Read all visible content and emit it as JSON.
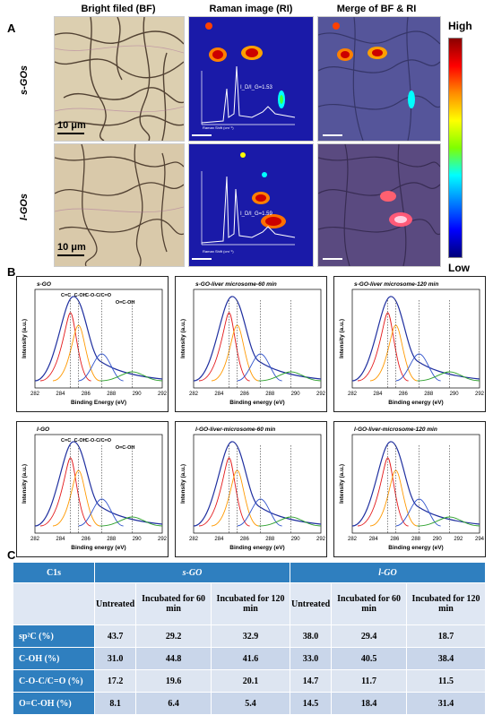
{
  "panel_a": {
    "letter": "A",
    "columns": [
      "Bright filed (BF)",
      "Raman image (RI)",
      "Merge of BF & RI"
    ],
    "rows": [
      "s-GOs",
      "l-GOs"
    ],
    "scale_label": "10 μm",
    "colorbar": {
      "high": "High",
      "low": "Low"
    },
    "insets": [
      {
        "ratio_label": "I_D/I_G=1.53",
        "ylabel": "Intensity (a.u.)",
        "xlabel": "Raman Shift (cm⁻¹)",
        "ticks": [
          "500",
          "1000",
          "1500",
          "2000",
          "2500",
          "3000",
          "3500",
          "4000"
        ]
      },
      {
        "ratio_label": "I_D/I_G=1.59",
        "ylabel": "Intensity (a.u.)",
        "xlabel": "Raman Shift (cm⁻¹)",
        "ticks": [
          "500",
          "1000",
          "1500",
          "2000",
          "2500",
          "3000",
          "3500",
          "4000"
        ]
      }
    ]
  },
  "panel_b": {
    "letter": "B",
    "ylabel": "Intensity (a.u.)",
    "charts": [
      {
        "title": "s-GO",
        "xlabel": "Binding Energy (eV)",
        "peak_labels": [
          "C=C",
          "C-OH",
          "C-O-C/C=O",
          "O=C-OH"
        ],
        "xticks": [
          "282",
          "284",
          "286",
          "288",
          "290",
          "292"
        ]
      },
      {
        "title": "s-GO-liver microsome-60 min",
        "xlabel": "Binding energy (eV)",
        "peak_labels": [],
        "xticks": [
          "282",
          "284",
          "286",
          "288",
          "290",
          "292"
        ]
      },
      {
        "title": "s-GO-liver microsome-120 min",
        "xlabel": "Binding energy (eV)",
        "peak_labels": [],
        "xticks": [
          "282",
          "284",
          "286",
          "288",
          "290",
          "292"
        ]
      },
      {
        "title": "l-GO",
        "xlabel": "Binding energy (eV)",
        "peak_labels": [
          "C=C",
          "C-OH",
          "C-O-C/C=O",
          "O=C-OH"
        ],
        "xticks": [
          "282",
          "284",
          "286",
          "288",
          "290",
          "292"
        ]
      },
      {
        "title": "l-GO-liver-microsome-60 min",
        "xlabel": "Binding energy (eV)",
        "peak_labels": [],
        "xticks": [
          "282",
          "284",
          "286",
          "288",
          "290",
          "292"
        ]
      },
      {
        "title": "l-GO-liver-microsome-120 min",
        "xlabel": "Binding energy (eV)",
        "peak_labels": [],
        "xticks": [
          "282",
          "284",
          "286",
          "288",
          "290",
          "292",
          "294"
        ]
      }
    ]
  },
  "panel_c": {
    "letter": "C",
    "header": {
      "c1s": "C1s",
      "group1": "s-GO",
      "group2": "l-GO"
    },
    "subheaders": [
      "Untreated",
      "Incubated for 60 min",
      "Incubated for 120 min",
      "Untreated",
      "Incubated for 60 min",
      "Incubated for 120 min"
    ],
    "rows": [
      {
        "label": "sp²C (%)",
        "values": [
          "43.7",
          "29.2",
          "32.9",
          "38.0",
          "29.4",
          "18.7"
        ]
      },
      {
        "label": "C-OH (%)",
        "values": [
          "31.0",
          "44.8",
          "41.6",
          "33.0",
          "40.5",
          "38.4"
        ]
      },
      {
        "label": "C-O-C/C=O (%)",
        "values": [
          "17.2",
          "19.6",
          "20.1",
          "14.7",
          "11.7",
          "11.5"
        ]
      },
      {
        "label": "O=C-OH (%)",
        "values": [
          "8.1",
          "6.4",
          "5.4",
          "14.5",
          "18.4",
          "31.4"
        ]
      }
    ]
  },
  "colors": {
    "table_header": "#2f7fbf",
    "table_row": "#c9d6ea",
    "raman_bg": "#1a1aa8",
    "bf_bg": "#d7c7a3"
  }
}
